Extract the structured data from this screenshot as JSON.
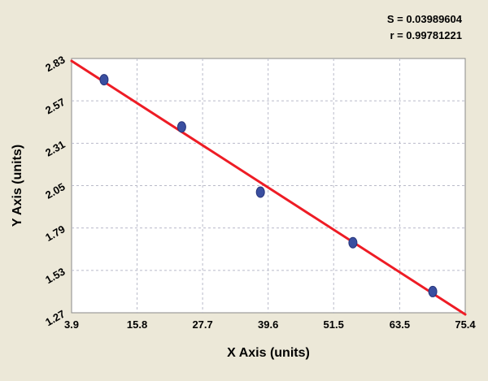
{
  "stats": {
    "s_label": "S = 0.03989604",
    "r_label": "r = 0.99781221"
  },
  "chart_data": {
    "type": "scatter",
    "title": "",
    "xlabel": "X Axis (units)",
    "ylabel": "Y Axis (units)",
    "xlim": [
      3.9,
      75.4
    ],
    "ylim": [
      1.27,
      2.83
    ],
    "x_ticks": [
      3.9,
      15.8,
      27.7,
      39.6,
      51.5,
      63.5,
      75.4
    ],
    "y_ticks": [
      1.27,
      1.53,
      1.79,
      2.05,
      2.31,
      2.57,
      2.83
    ],
    "grid": "dashed",
    "legend": "none",
    "annotations": [
      "S = 0.03989604",
      "r = 0.99781221"
    ],
    "points": [
      {
        "x": 9.8,
        "y": 2.7
      },
      {
        "x": 23.9,
        "y": 2.41
      },
      {
        "x": 38.2,
        "y": 2.01
      },
      {
        "x": 55.0,
        "y": 1.7
      },
      {
        "x": 69.5,
        "y": 1.4
      }
    ],
    "fit_line": {
      "x1": 3.9,
      "y1": 2.815,
      "x2": 75.4,
      "y2": 1.26
    },
    "colors": {
      "background": "#ece8d8",
      "plot_background": "#ffffff",
      "frame": "#8a8a8a",
      "grid": "#b9bac9",
      "line": "#ee1c25",
      "point_fill": "#3a4fa0",
      "point_stroke": "#27357c",
      "text": "#000000"
    }
  }
}
